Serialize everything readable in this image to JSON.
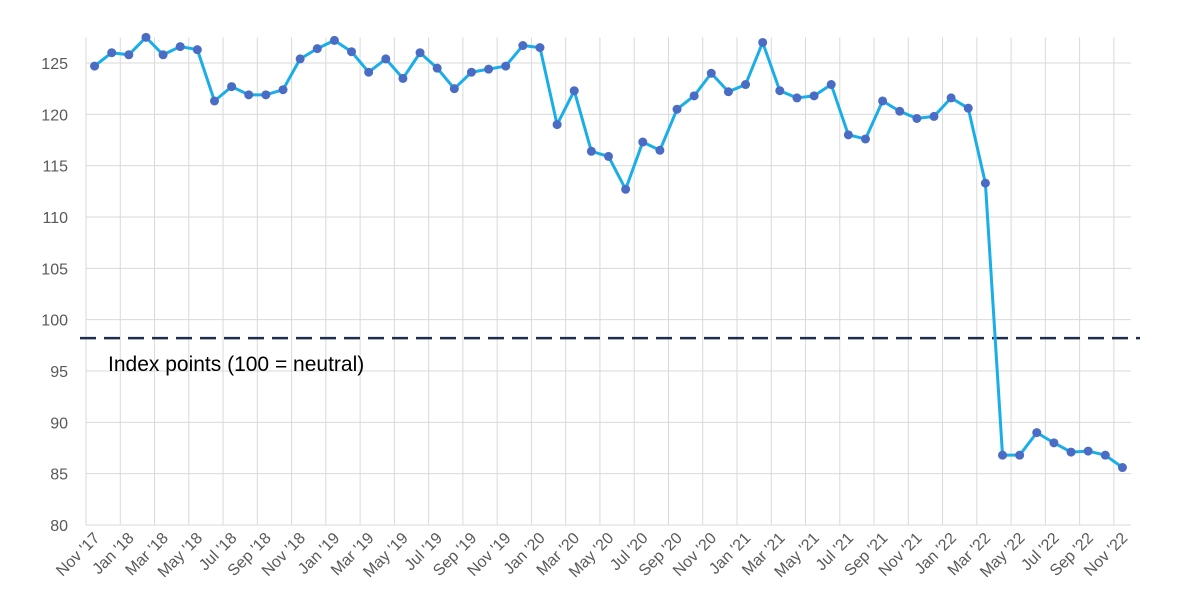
{
  "chart_data": {
    "type": "line",
    "categories": [
      "Nov '17",
      null,
      "Jan '18",
      null,
      "Mar '18",
      null,
      "May '18",
      null,
      "Jul '18",
      null,
      "Sep '18",
      null,
      "Nov '18",
      null,
      "Jan '19",
      null,
      "Mar '19",
      null,
      "May '19",
      null,
      "Jul '19",
      null,
      "Sep '19",
      null,
      "Nov '19",
      null,
      "Jan '20",
      null,
      "Mar '20",
      null,
      "May '20",
      null,
      "Jul '20",
      null,
      "Sep '20",
      null,
      "Nov '20",
      null,
      "Jan '21",
      null,
      "Mar '21",
      null,
      "May '21",
      null,
      "Jul '21",
      null,
      "Sep '21",
      null,
      "Nov '21",
      null,
      "Jan '22",
      null,
      "Mar '22",
      null,
      "May '22",
      null,
      "Jul '22",
      null,
      "Sep '22",
      null,
      "Nov '22"
    ],
    "series": [
      {
        "color": "#1aaee8",
        "marker_color": "#4a6cc4",
        "values": [
          124.7,
          126.0,
          125.8,
          127.5,
          125.8,
          126.6,
          126.3,
          121.3,
          122.7,
          121.9,
          121.9,
          122.4,
          125.4,
          126.4,
          127.2,
          126.1,
          124.1,
          125.4,
          123.5,
          126.0,
          124.5,
          122.5,
          124.1,
          124.4,
          124.7,
          126.7,
          126.5,
          119.0,
          122.3,
          116.4,
          115.9,
          112.7,
          117.3,
          116.5,
          120.5,
          121.8,
          124.0,
          122.2,
          122.9,
          127.0,
          122.3,
          121.6,
          121.8,
          122.9,
          118.0,
          117.6,
          121.3,
          120.3,
          119.6,
          119.8,
          121.6,
          120.6,
          113.3,
          86.8,
          86.8,
          89.0,
          88.0,
          87.1,
          87.2,
          86.8,
          85.6
        ]
      }
    ],
    "ylim": [
      80,
      127.5
    ],
    "yticks": [
      80,
      85,
      90,
      95,
      100,
      105,
      110,
      115,
      120,
      125
    ],
    "grid": true,
    "reference_line": {
      "value": 98.2,
      "color": "#1f2d4f",
      "label": "Index points (100 = neutral)"
    }
  }
}
